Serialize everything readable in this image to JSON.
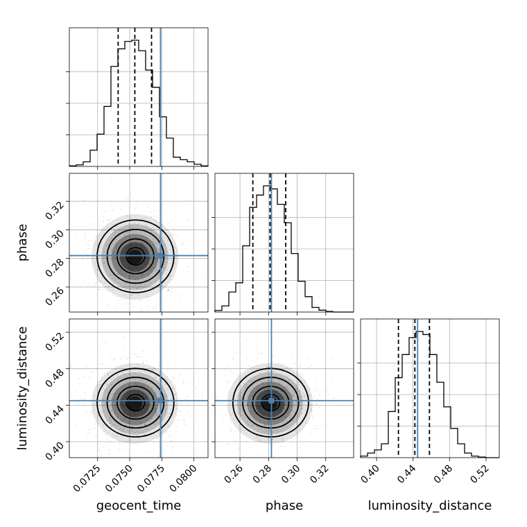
{
  "chart_data": {
    "type": "corner",
    "parameters": [
      "geocent_time",
      "phase",
      "luminosity_distance"
    ],
    "truths": {
      "geocent_time": 0.0774,
      "phase": 0.282,
      "luminosity_distance": 0.445
    },
    "quantiles": {
      "geocent_time": [
        0.0741,
        0.0754,
        0.0767
      ],
      "phase": [
        0.269,
        0.281,
        0.292
      ],
      "luminosity_distance": [
        0.424,
        0.442,
        0.458
      ]
    },
    "axes": {
      "geocent_time": {
        "range": [
          0.0703,
          0.0811
        ],
        "ticks": [
          0.0725,
          0.075,
          0.0775,
          0.08
        ],
        "tick_labels": [
          "0.0725",
          "0.0750",
          "0.0775",
          "0.0800"
        ]
      },
      "phase": {
        "range": [
          0.2425,
          0.3395
        ],
        "ticks": [
          0.26,
          0.28,
          0.3,
          0.32
        ],
        "tick_labels": [
          "0.26",
          "0.28",
          "0.30",
          "0.32"
        ]
      },
      "luminosity_distance": {
        "range": [
          0.3825,
          0.5345
        ],
        "ticks": [
          0.4,
          0.44,
          0.48,
          0.52
        ],
        "tick_labels": [
          "0.40",
          "0.44",
          "0.48",
          "0.52"
        ]
      }
    },
    "histograms": {
      "geocent_time": {
        "edges": [
          0.0703,
          0.0811
        ],
        "counts": [
          0.2,
          0.5,
          1.5,
          5.3,
          10.5,
          19.5,
          32.5,
          38.2,
          40.6,
          41.0,
          37.6,
          31.3,
          25.7,
          16.1,
          9.2,
          3.0,
          2.2,
          1.5,
          0.7,
          0.2
        ]
      },
      "phase": {
        "edges": [
          0.2425,
          0.3395
        ],
        "counts": [
          0.5,
          2,
          6.5,
          9.5,
          21.5,
          34,
          38,
          41,
          40,
          35,
          29,
          19,
          10,
          5,
          1.5,
          0.6,
          0.2,
          0,
          0,
          0
        ]
      },
      "luminosity_distance": {
        "edges": [
          0.3825,
          0.5345
        ],
        "counts": [
          0.5,
          1.5,
          2.5,
          4.5,
          15,
          26,
          33.5,
          39,
          41,
          40,
          33.5,
          24.5,
          16.5,
          9.5,
          4.5,
          1.5,
          0.5,
          0.2,
          0,
          0
        ]
      }
    },
    "grid": true,
    "colors": {
      "truth": "#4682b4",
      "hist": "#000000",
      "density": "#000000"
    }
  }
}
